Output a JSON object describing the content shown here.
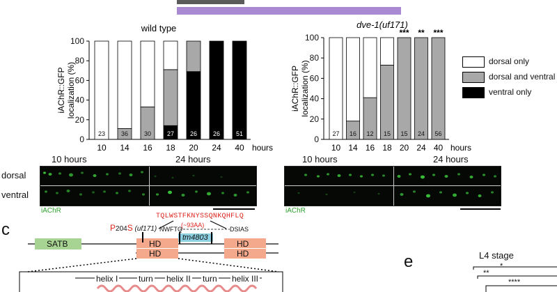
{
  "top_bars": [
    {
      "color": "#5b5b5b"
    },
    {
      "color": "#a889d2"
    }
  ],
  "chart_data": [
    {
      "type": "bar",
      "stacked": true,
      "title": "wild type",
      "ylabel": "iAChR::GFP localization (%)",
      "xlabel": "hours",
      "ylim": [
        0,
        100
      ],
      "yticks": [
        0,
        20,
        40,
        60,
        80,
        100
      ],
      "categories": [
        "10",
        "14",
        "16",
        "18",
        "20",
        "24",
        "40"
      ],
      "n": [
        "23",
        "36",
        "30",
        "27",
        "26",
        "26",
        "51"
      ],
      "series": [
        {
          "name": "ventral only",
          "color": "#000000",
          "values": [
            0,
            0,
            0,
            14,
            69,
            100,
            100
          ]
        },
        {
          "name": "dorsal and ventral",
          "color": "#a8a8a8",
          "values": [
            0,
            11,
            33,
            57,
            31,
            0,
            0
          ]
        },
        {
          "name": "dorsal only",
          "color": "#ffffff",
          "values": [
            100,
            89,
            67,
            29,
            0,
            0,
            0
          ]
        }
      ],
      "significance": [
        "",
        "",
        "",
        "",
        "",
        "",
        ""
      ]
    },
    {
      "type": "bar",
      "stacked": true,
      "title": "dve-1(uf171)",
      "ylabel": "iAChR::GFP localization (%)",
      "xlabel": "hours",
      "ylim": [
        0,
        100
      ],
      "yticks": [
        0,
        20,
        40,
        60,
        80,
        100
      ],
      "categories": [
        "10",
        "14",
        "16",
        "18",
        "20",
        "24",
        "40"
      ],
      "n": [
        "27",
        "16",
        "12",
        "15",
        "15",
        "24",
        "56"
      ],
      "series": [
        {
          "name": "ventral only",
          "color": "#000000",
          "values": [
            0,
            0,
            0,
            0,
            0,
            0,
            0
          ]
        },
        {
          "name": "dorsal and ventral",
          "color": "#a8a8a8",
          "values": [
            0,
            18,
            41,
            73,
            100,
            100,
            100
          ]
        },
        {
          "name": "dorsal only",
          "color": "#ffffff",
          "values": [
            100,
            82,
            59,
            27,
            0,
            0,
            0
          ]
        }
      ],
      "significance": [
        "",
        "",
        "",
        "",
        "***",
        "**",
        "***"
      ]
    }
  ],
  "legend": {
    "items": [
      {
        "label": "dorsal only",
        "color": "#ffffff"
      },
      {
        "label": "dorsal and ventral",
        "color": "#a8a8a8"
      },
      {
        "label": "ventral only",
        "color": "#000000"
      }
    ]
  },
  "micrographs": {
    "left_time_1": "10 hours",
    "left_time_2": "24 hours",
    "right_time_1": "10 hours",
    "right_time_2": "24 hours",
    "row_dorsal": "dorsal",
    "row_ventral": "ventral",
    "left_caption": "iAChR",
    "right_caption": "iAChR"
  },
  "panel_c": {
    "letter": "c",
    "mutation_prefix": "P",
    "mutation_position": "204",
    "mutation_suffix": "S",
    "allele": "(uf171)",
    "insert_sequence": "TQLWSTFKNYSSQNKQHFLQ",
    "deletion": "(~93AA)",
    "flank_left": "NWFTQ",
    "flank_right": "DSIAS",
    "tm_allele": "tm4803",
    "domain_satb": "SATB",
    "domain_hd": "HD",
    "helix_1": "helix I",
    "turn_1": "turn",
    "helix_2": "helix II",
    "turn_2": "turn",
    "helix_3": "helix III"
  },
  "panel_e": {
    "letter": "e",
    "title": "L4 stage",
    "sig": [
      "*",
      "**",
      "****"
    ]
  }
}
